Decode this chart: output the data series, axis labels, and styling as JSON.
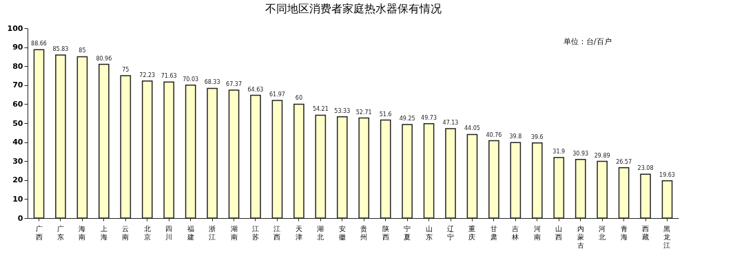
{
  "chart_data": {
    "type": "bar",
    "title": "不同地区消费者家庭热水器保有情况",
    "annotations": [
      "单位：台/百户"
    ],
    "categories": [
      "广西",
      "广东",
      "海南",
      "上海",
      "云南",
      "北京",
      "四川",
      "福建",
      "浙江",
      "湖南",
      "江苏",
      "江西",
      "天津",
      "湖北",
      "安徽",
      "贵州",
      "陕西",
      "宁夏",
      "山东",
      "辽宁",
      "重庆",
      "甘肃",
      "吉林",
      "河南",
      "山西",
      "内蒙古",
      "河北",
      "青海",
      "西藏",
      "黑龙江"
    ],
    "values": [
      88.66,
      85.83,
      85,
      80.96,
      75,
      72.23,
      71.63,
      70.03,
      68.33,
      67.37,
      64.63,
      61.97,
      60,
      54.21,
      53.33,
      52.71,
      51.6,
      49.25,
      49.73,
      47.13,
      44.05,
      40.76,
      39.8,
      39.6,
      31.9,
      30.93,
      29.89,
      26.57,
      23.08,
      19.63
    ],
    "color": "#ffffc8",
    "data_labels": true,
    "ylim": [
      0,
      100
    ],
    "yticks": [
      0,
      10,
      20,
      30,
      40,
      50,
      60,
      70,
      80,
      90,
      100
    ],
    "grid": false
  }
}
